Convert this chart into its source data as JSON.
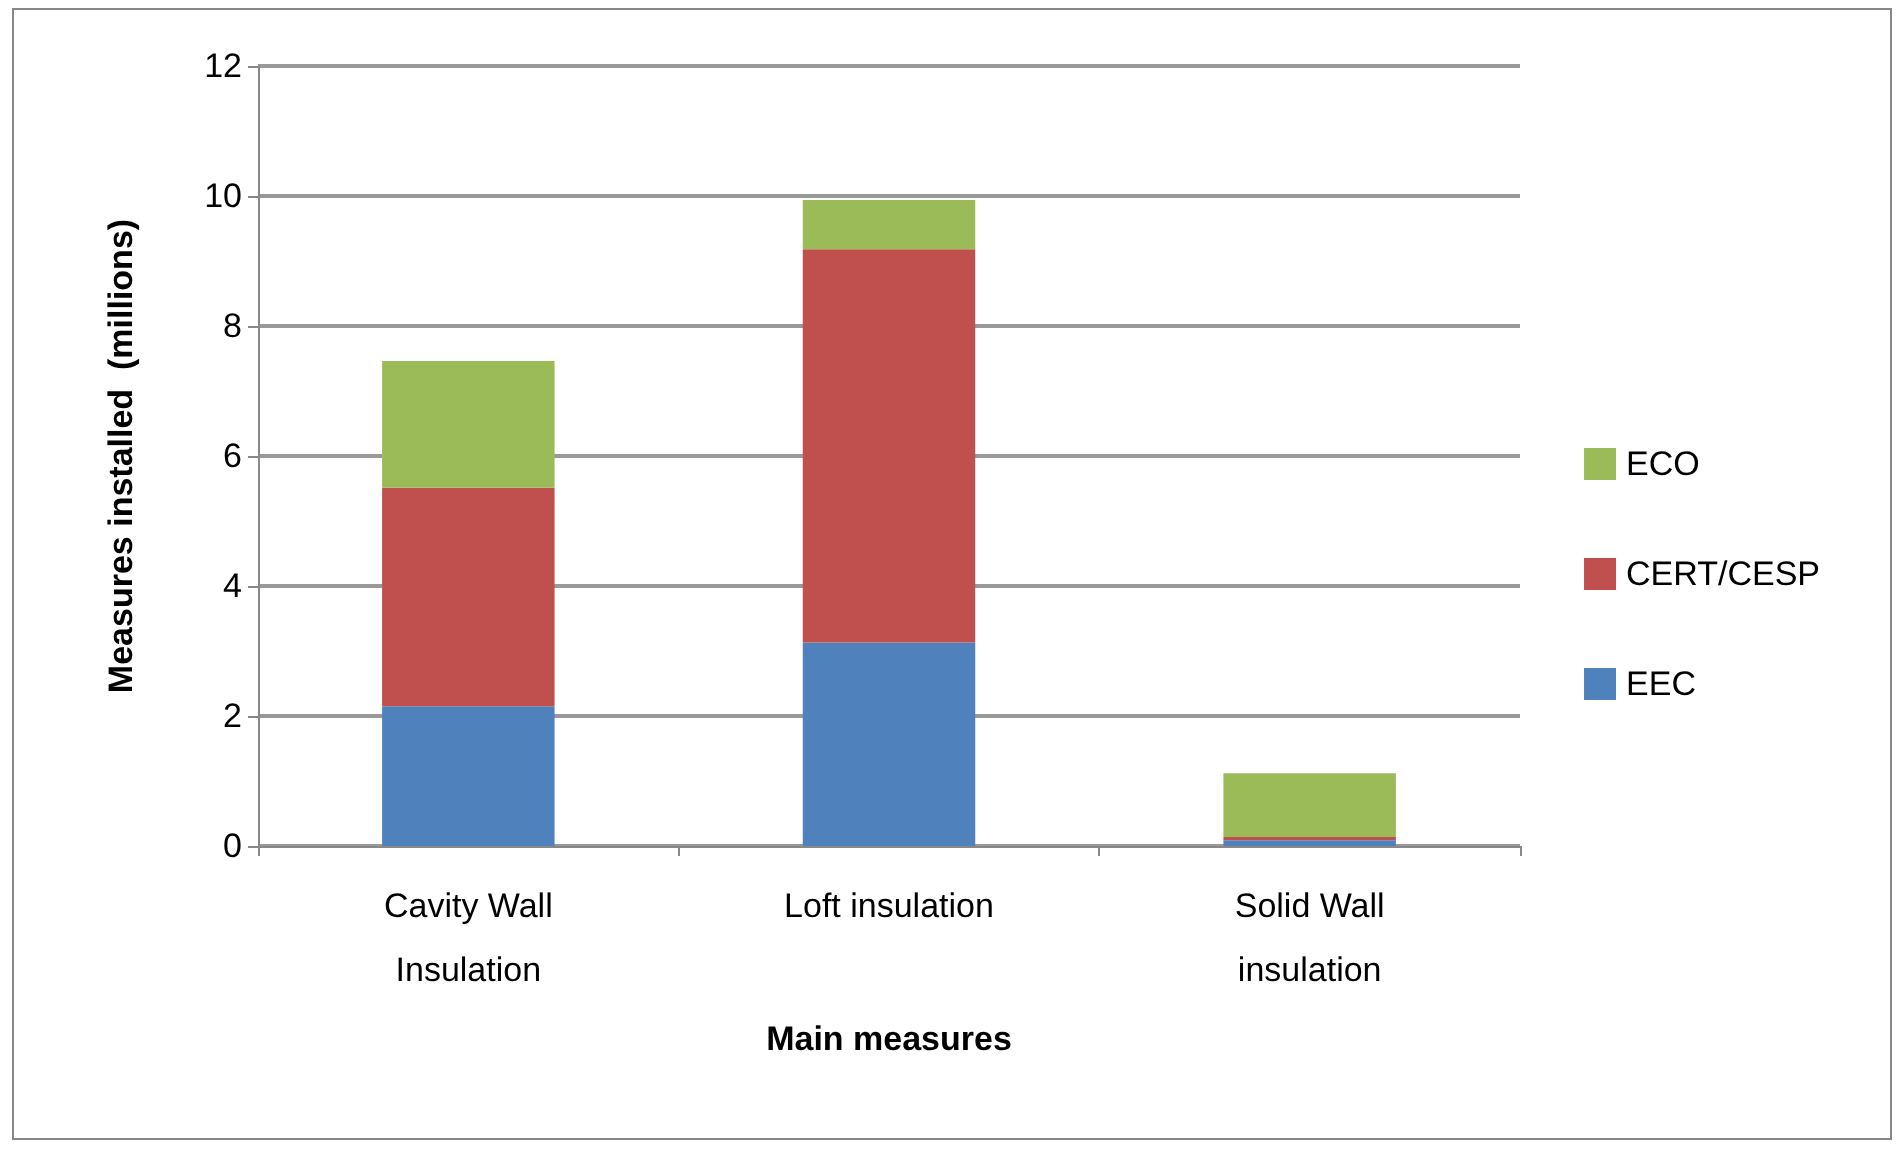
{
  "chart_data": {
    "type": "bar",
    "stacked": true,
    "xlabel": "Main measures",
    "ylabel": "Measures installed  (millions)",
    "categories": [
      "Cavity Wall\nInsulation",
      "Loft insulation",
      "Solid Wall\ninsulation"
    ],
    "series": [
      {
        "name": "EEC",
        "color": "#4f81bd",
        "values": [
          2.15,
          3.13,
          0.09
        ]
      },
      {
        "name": "CERT/CESP",
        "color": "#c0504d",
        "values": [
          3.36,
          6.05,
          0.05
        ]
      },
      {
        "name": "ECO",
        "color": "#9bbb59",
        "values": [
          1.95,
          0.76,
          0.98
        ]
      }
    ],
    "ylim": [
      0,
      12
    ],
    "yticks": [
      0,
      2,
      4,
      6,
      8,
      10,
      12
    ],
    "grid": "y",
    "legend": "right"
  }
}
